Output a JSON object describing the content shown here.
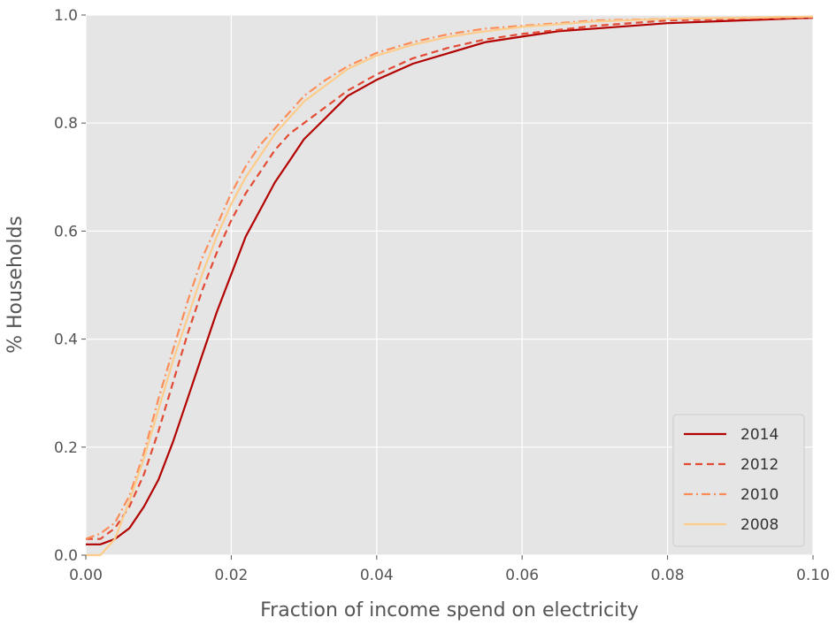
{
  "chart_data": {
    "type": "line",
    "title": "",
    "xlabel": "Fraction of income spend on electricity",
    "ylabel": "% Households",
    "xlim": [
      0.0,
      0.1
    ],
    "ylim": [
      0.0,
      1.0
    ],
    "xticks": [
      "0.00",
      "0.02",
      "0.04",
      "0.06",
      "0.08",
      "0.10"
    ],
    "yticks": [
      "0.0",
      "0.2",
      "0.4",
      "0.6",
      "0.8",
      "1.0"
    ],
    "grid": true,
    "background": "#e5e5e5",
    "legend_position": "bottom-right",
    "series": [
      {
        "name": "2014",
        "color": "#b30000",
        "dash": "solid",
        "x": [
          0.0,
          0.002,
          0.004,
          0.006,
          0.008,
          0.01,
          0.012,
          0.014,
          0.016,
          0.018,
          0.02,
          0.022,
          0.024,
          0.026,
          0.028,
          0.03,
          0.033,
          0.036,
          0.04,
          0.045,
          0.05,
          0.055,
          0.06,
          0.065,
          0.07,
          0.08,
          0.09,
          0.1
        ],
        "y": [
          0.02,
          0.02,
          0.03,
          0.05,
          0.09,
          0.14,
          0.21,
          0.29,
          0.37,
          0.45,
          0.52,
          0.59,
          0.64,
          0.69,
          0.73,
          0.77,
          0.81,
          0.85,
          0.88,
          0.91,
          0.93,
          0.95,
          0.96,
          0.97,
          0.975,
          0.985,
          0.99,
          0.995
        ]
      },
      {
        "name": "2012",
        "color": "#e34a33",
        "dash": "dashed",
        "x": [
          0.0,
          0.002,
          0.004,
          0.006,
          0.008,
          0.01,
          0.012,
          0.014,
          0.016,
          0.018,
          0.02,
          0.022,
          0.024,
          0.026,
          0.028,
          0.03,
          0.033,
          0.036,
          0.04,
          0.045,
          0.05,
          0.055,
          0.06,
          0.07,
          0.08,
          0.09,
          0.1
        ],
        "y": [
          0.03,
          0.03,
          0.05,
          0.09,
          0.15,
          0.23,
          0.32,
          0.41,
          0.49,
          0.56,
          0.62,
          0.67,
          0.71,
          0.75,
          0.78,
          0.8,
          0.83,
          0.86,
          0.89,
          0.92,
          0.94,
          0.955,
          0.965,
          0.98,
          0.99,
          0.993,
          0.995
        ]
      },
      {
        "name": "2010",
        "color": "#fc8d59",
        "dash": "dashdot",
        "x": [
          0.0,
          0.002,
          0.004,
          0.006,
          0.008,
          0.01,
          0.012,
          0.014,
          0.016,
          0.018,
          0.02,
          0.022,
          0.024,
          0.026,
          0.028,
          0.03,
          0.033,
          0.036,
          0.04,
          0.045,
          0.05,
          0.055,
          0.06,
          0.07,
          0.08,
          0.09,
          0.1
        ],
        "y": [
          0.03,
          0.04,
          0.06,
          0.11,
          0.19,
          0.29,
          0.38,
          0.47,
          0.55,
          0.61,
          0.67,
          0.72,
          0.76,
          0.79,
          0.82,
          0.85,
          0.88,
          0.905,
          0.93,
          0.95,
          0.965,
          0.975,
          0.98,
          0.99,
          0.993,
          0.995,
          0.997
        ]
      },
      {
        "name": "2008",
        "color": "#fdcc8a",
        "dash": "solid",
        "x": [
          0.0,
          0.002,
          0.004,
          0.006,
          0.008,
          0.01,
          0.012,
          0.014,
          0.016,
          0.018,
          0.02,
          0.022,
          0.024,
          0.026,
          0.028,
          0.03,
          0.033,
          0.036,
          0.04,
          0.045,
          0.05,
          0.055,
          0.06,
          0.07,
          0.08,
          0.09,
          0.1
        ],
        "y": [
          0.0,
          0.0,
          0.03,
          0.1,
          0.18,
          0.27,
          0.36,
          0.44,
          0.52,
          0.59,
          0.65,
          0.7,
          0.74,
          0.78,
          0.81,
          0.84,
          0.87,
          0.9,
          0.925,
          0.945,
          0.96,
          0.97,
          0.978,
          0.988,
          0.993,
          0.995,
          0.997
        ]
      }
    ]
  }
}
